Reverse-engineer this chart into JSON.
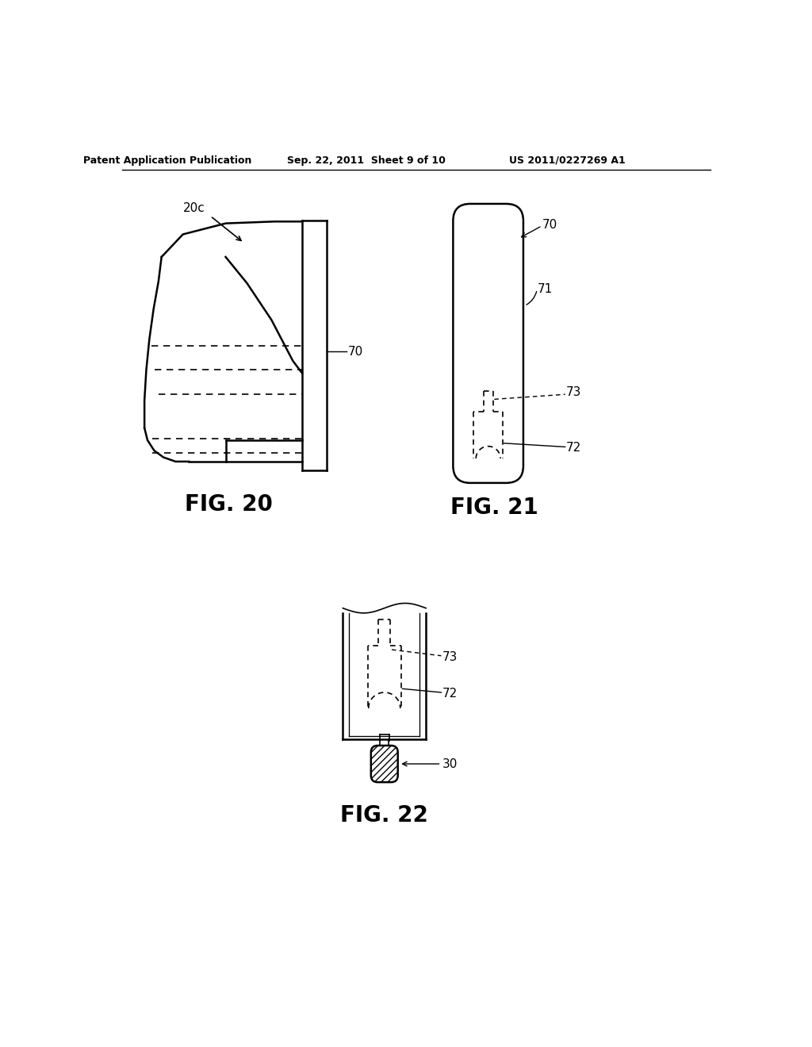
{
  "bg_color": "#ffffff",
  "line_color": "#000000",
  "header_text": "Patent Application Publication",
  "header_date": "Sep. 22, 2011  Sheet 9 of 10",
  "header_patent": "US 2011/0227269 A1",
  "fig20_label": "FIG. 20",
  "fig21_label": "FIG. 21",
  "fig22_label": "FIG. 22",
  "label_20c": "20c",
  "label_70a": "70",
  "label_70b": "70",
  "label_71": "71",
  "label_72a": "72",
  "label_72b": "72",
  "label_73a": "73",
  "label_73b": "73",
  "label_30": "30"
}
